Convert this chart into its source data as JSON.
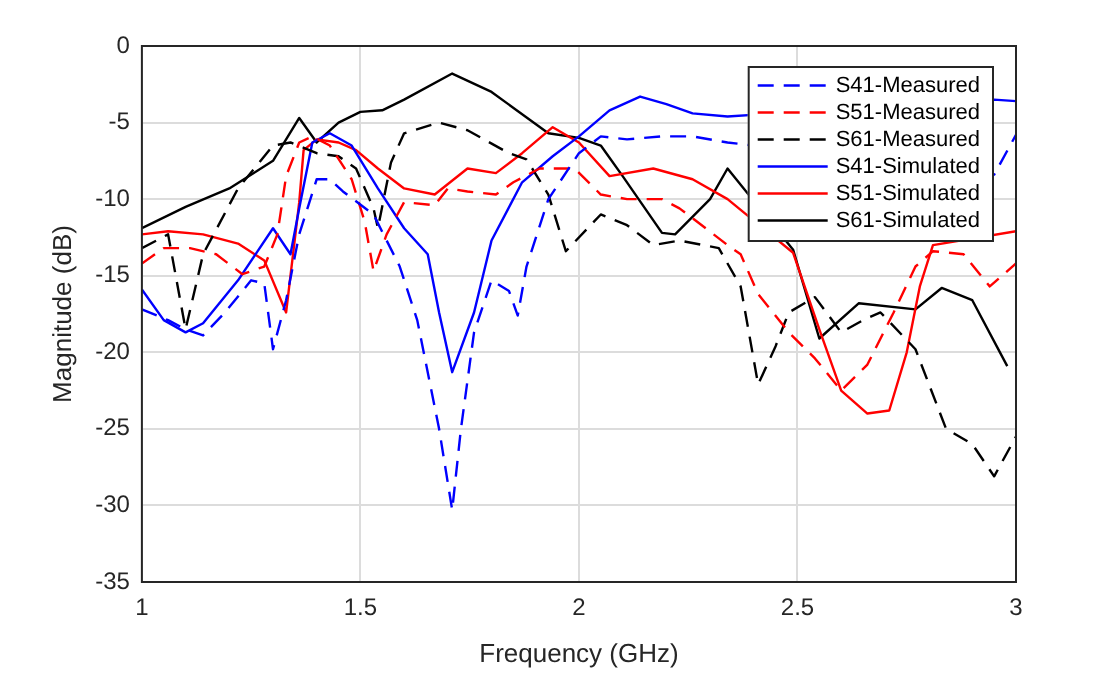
{
  "chart_data": {
    "type": "line",
    "xlabel": "Frequency (GHz)",
    "ylabel": "Magnitude (dB)",
    "xlim": [
      1,
      3
    ],
    "ylim": [
      -35,
      0
    ],
    "xticks": [
      1,
      1.5,
      2,
      2.5,
      3
    ],
    "yticks": [
      -35,
      -30,
      -25,
      -20,
      -15,
      -10,
      -5,
      0
    ],
    "grid": true,
    "legend": "top right",
    "marker": "none",
    "series": [
      {
        "name": "S41-Measured",
        "color": "#0000ff",
        "line_style": "dashed",
        "x": [
          1.0,
          1.06,
          1.1,
          1.14,
          1.19,
          1.25,
          1.28,
          1.3,
          1.33,
          1.36,
          1.4,
          1.43,
          1.46,
          1.53,
          1.59,
          1.63,
          1.68,
          1.71,
          1.73,
          1.76,
          1.8,
          1.84,
          1.86,
          1.88,
          1.93,
          2.0,
          2.05,
          2.11,
          2.19,
          2.26,
          2.34,
          2.95,
          3.0
        ],
        "values": [
          -17.2,
          -17.9,
          -18.5,
          -18.9,
          -17.4,
          -15.3,
          -15.5,
          -19.8,
          -16.6,
          -12.3,
          -8.7,
          -8.7,
          -9.5,
          -11,
          -14.4,
          -17.9,
          -25,
          -30.3,
          -25,
          -18.7,
          -15.3,
          -16,
          -17.6,
          -14.4,
          -10,
          -7,
          -5.9,
          -6.1,
          -5.9,
          -5.9,
          -6.3,
          -8.4,
          -5.8
        ]
      },
      {
        "name": "S51-Measured",
        "color": "#ff0000",
        "line_style": "dashed",
        "x": [
          1.0,
          1.05,
          1.11,
          1.17,
          1.23,
          1.28,
          1.31,
          1.33,
          1.36,
          1.39,
          1.43,
          1.48,
          1.51,
          1.53,
          1.56,
          1.6,
          1.67,
          1.7,
          1.745,
          1.81,
          1.85,
          1.91,
          1.99,
          2.05,
          2.11,
          2.19,
          2.23,
          2.29,
          2.34,
          2.37,
          2.41,
          2.48,
          2.54,
          2.6,
          2.66,
          2.72,
          2.77,
          2.81,
          2.88,
          2.94,
          3.0
        ],
        "values": [
          -14.2,
          -13.2,
          -13.2,
          -13.6,
          -14.9,
          -14.4,
          -12.3,
          -8.5,
          -6.3,
          -5.9,
          -6.5,
          -8.7,
          -11.5,
          -14.7,
          -12.3,
          -10.2,
          -10.4,
          -9.3,
          -9.5,
          -9.7,
          -8.9,
          -8,
          -8,
          -9.7,
          -10,
          -10,
          -10.6,
          -11.9,
          -13,
          -13.6,
          -16.2,
          -18.7,
          -20.4,
          -22.5,
          -20.8,
          -17.4,
          -14.4,
          -13.4,
          -13.6,
          -15.7,
          -14.2
        ]
      },
      {
        "name": "S61-Measured",
        "color": "#000000",
        "line_style": "dashed",
        "x": [
          1.0,
          1.06,
          1.1,
          1.14,
          1.22,
          1.3,
          1.34,
          1.4,
          1.45,
          1.49,
          1.53,
          1.54,
          1.57,
          1.6,
          1.68,
          1.745,
          1.84,
          1.88,
          1.93,
          1.97,
          2.05,
          2.11,
          2.17,
          2.23,
          2.32,
          2.37,
          2.41,
          2.45,
          2.48,
          2.54,
          2.6,
          2.65,
          2.69,
          2.77,
          2.84,
          2.9,
          2.95,
          3.0
        ],
        "values": [
          -13.2,
          -12.3,
          -18.5,
          -13.6,
          -9.3,
          -6.5,
          -6.3,
          -7,
          -7.2,
          -8,
          -10.6,
          -11.9,
          -7.6,
          -5.7,
          -5,
          -5.5,
          -7,
          -7.4,
          -9.7,
          -13.4,
          -11,
          -11.7,
          -13,
          -12.7,
          -13.2,
          -15.7,
          -22.1,
          -19.6,
          -17.4,
          -16.4,
          -18.7,
          -17.9,
          -17.4,
          -19.8,
          -25,
          -26,
          -28.1,
          -25.5
        ]
      },
      {
        "name": "S41-Simulated",
        "color": "#0000ff",
        "line_style": "solid",
        "x": [
          1.0,
          1.05,
          1.1,
          1.14,
          1.22,
          1.3,
          1.34,
          1.36,
          1.39,
          1.43,
          1.48,
          1.54,
          1.6,
          1.654,
          1.68,
          1.71,
          1.76,
          1.8,
          1.87,
          1.94,
          2.0,
          2.07,
          2.14,
          2.2,
          2.26,
          2.34,
          2.95,
          3.0
        ],
        "values": [
          -15.9,
          -17.9,
          -18.7,
          -18.1,
          -15.3,
          -11.9,
          -13.6,
          -10.6,
          -6.3,
          -5.7,
          -6.5,
          -9.3,
          -11.9,
          -13.6,
          -17.4,
          -21.3,
          -17.4,
          -12.7,
          -8.9,
          -7.2,
          -5.9,
          -4.2,
          -3.3,
          -3.8,
          -4.4,
          -4.6,
          -3.5,
          -3.6
        ]
      },
      {
        "name": "S51-Simulated",
        "color": "#ff0000",
        "line_style": "solid",
        "x": [
          1.0,
          1.06,
          1.14,
          1.22,
          1.28,
          1.33,
          1.36,
          1.37,
          1.4,
          1.45,
          1.49,
          1.54,
          1.6,
          1.67,
          1.745,
          1.81,
          1.87,
          1.94,
          2.0,
          2.07,
          2.17,
          2.26,
          2.34,
          2.49,
          2.55,
          2.6,
          2.66,
          2.71,
          2.75,
          2.78,
          2.81,
          3.0
        ],
        "values": [
          -12.3,
          -12.1,
          -12.3,
          -12.9,
          -14,
          -17.4,
          -10.2,
          -6.8,
          -6.1,
          -6.3,
          -6.8,
          -8,
          -9.3,
          -9.7,
          -8,
          -8.3,
          -7,
          -5.3,
          -6.3,
          -8.5,
          -8,
          -8.7,
          -10,
          -13.5,
          -18.5,
          -22.5,
          -24,
          -23.8,
          -20,
          -15.7,
          -13,
          -12.1
        ]
      },
      {
        "name": "S61-Simulated",
        "color": "#000000",
        "line_style": "solid",
        "x": [
          1.0,
          1.1,
          1.2,
          1.3,
          1.36,
          1.4,
          1.45,
          1.5,
          1.55,
          1.6,
          1.71,
          1.8,
          1.93,
          2.0,
          2.05,
          2.1,
          2.19,
          2.22,
          2.3,
          2.34,
          2.49,
          2.55,
          2.64,
          2.77,
          2.83,
          2.9,
          2.98
        ],
        "values": [
          -11.9,
          -10.5,
          -9.3,
          -7.5,
          -4.7,
          -6.3,
          -5,
          -4.3,
          -4.2,
          -3.5,
          -1.8,
          -3,
          -5.7,
          -6,
          -6.5,
          -8.5,
          -12.2,
          -12.3,
          -10,
          -8,
          -13.3,
          -19.1,
          -16.8,
          -17.2,
          -15.8,
          -16.6,
          -20.9
        ]
      }
    ]
  }
}
